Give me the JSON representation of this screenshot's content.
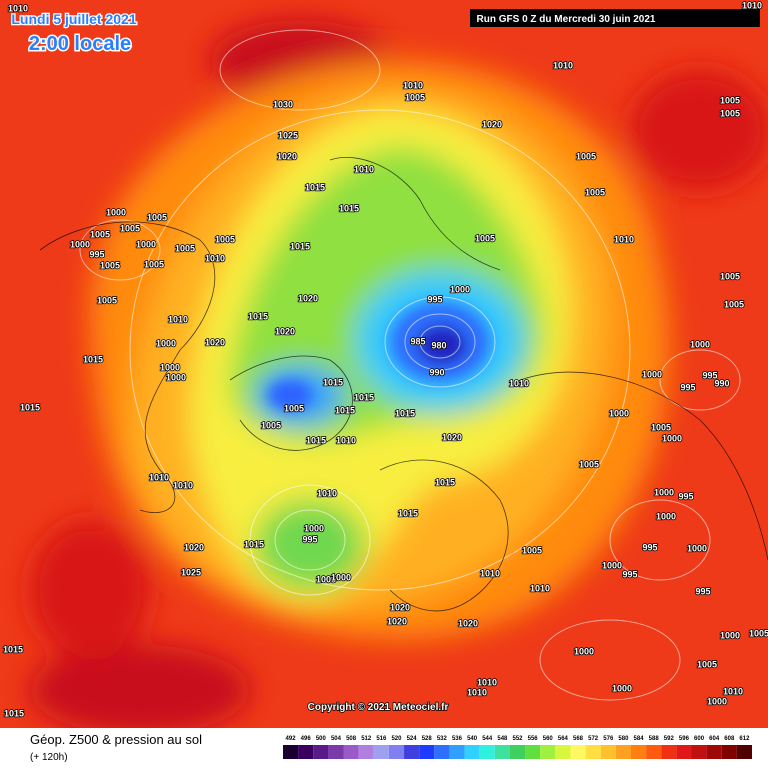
{
  "header": {
    "date": "Lundi 5 juillet 2021",
    "time": "2:00 locale",
    "run": "Run GFS 0 Z du Mercredi 30 juin 2021"
  },
  "isobar_labels": [
    1010,
    1010,
    1010,
    1030,
    1010,
    1005,
    1020,
    1005,
    1005,
    1025,
    1020,
    1010,
    1005,
    1005,
    1015,
    1015,
    1000,
    1005,
    1005,
    1005,
    1000,
    995,
    1000,
    1005,
    1005,
    1010,
    1005,
    1005,
    1015,
    1005,
    1010,
    1005,
    1000,
    995,
    1020,
    1005,
    1010,
    1015,
    1020,
    1000,
    1020,
    985,
    980,
    1005,
    1000,
    1015,
    1000,
    1000,
    990,
    1015,
    1010,
    995,
    990,
    995,
    1000,
    1015,
    1015,
    1005,
    1015,
    1015,
    1000,
    1005,
    1005,
    1000,
    1015,
    1010,
    1020,
    1005,
    1015,
    1010,
    1010,
    1010,
    1000,
    995,
    1015,
    1000,
    1000,
    995,
    1015,
    1020,
    1005,
    995,
    1000,
    1000,
    995,
    1025,
    1010,
    1005,
    1000,
    1010,
    995,
    1020,
    1020,
    1020,
    1005,
    1000,
    1015,
    1000,
    1005,
    1010,
    1010,
    1000,
    1010,
    1000,
    1015
  ],
  "copyright": "Copyright © 2021 Meteociel.fr",
  "footer": {
    "title": "Géop. Z500 & pression au sol",
    "lead": "(+ 120h)"
  },
  "legend": {
    "values": [
      492,
      496,
      500,
      504,
      508,
      512,
      516,
      520,
      524,
      528,
      532,
      536,
      540,
      544,
      548,
      552,
      556,
      560,
      564,
      568,
      572,
      576,
      580,
      584,
      588,
      592,
      596,
      600,
      604,
      608,
      612
    ],
    "colors": [
      "#1a0030",
      "#3a0060",
      "#5a1a8a",
      "#7a3aaa",
      "#9a5ac8",
      "#b080e0",
      "#a0a0f0",
      "#8080f0",
      "#4040e0",
      "#1e3cff",
      "#2f6fff",
      "#30a0ff",
      "#30d0ff",
      "#30f0e0",
      "#40e0a0",
      "#40d060",
      "#60e040",
      "#a0f040",
      "#d8f840",
      "#fff860",
      "#ffe040",
      "#ffc030",
      "#ffa020",
      "#ff8010",
      "#ff5a10",
      "#f03010",
      "#e01818",
      "#c01010",
      "#a00808",
      "#800000",
      "#500000"
    ]
  }
}
